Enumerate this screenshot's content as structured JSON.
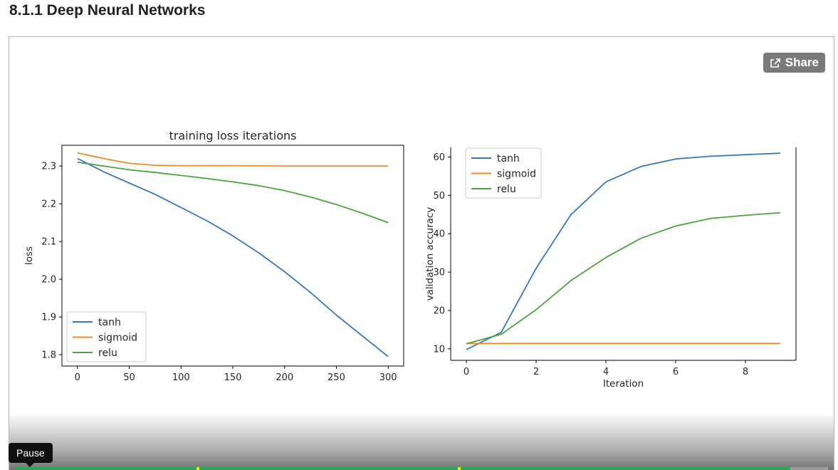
{
  "page": {
    "section_title": "8.1.1 Deep Neural Networks"
  },
  "player": {
    "share_label": "Share",
    "share_icon": "share-icon",
    "tooltip": "Pause"
  },
  "colors": {
    "tanh": "#3a78b5",
    "sigmoid": "#f08a24",
    "relu": "#4ea23f",
    "progress": "#2fa35e"
  },
  "chart_data": [
    {
      "type": "line",
      "title": "training loss iterations",
      "xlabel": "",
      "ylabel": "loss",
      "xlim": [
        -15,
        315
      ],
      "ylim": [
        1.77,
        2.355
      ],
      "xticks": [
        0,
        50,
        100,
        150,
        200,
        250,
        300
      ],
      "yticks": [
        1.8,
        1.9,
        2.0,
        2.1,
        2.2,
        2.3
      ],
      "ytick_labels": [
        "1.8",
        "1.9",
        "2.0",
        "2.1",
        "2.2",
        "2.3"
      ],
      "legend": "lower-left",
      "grid": false,
      "series": [
        {
          "name": "tanh",
          "x": [
            0,
            25,
            50,
            75,
            100,
            125,
            150,
            175,
            200,
            225,
            250,
            275,
            300
          ],
          "y": [
            2.32,
            2.285,
            2.255,
            2.225,
            2.19,
            2.155,
            2.115,
            2.07,
            2.02,
            1.965,
            1.905,
            1.85,
            1.795
          ]
        },
        {
          "name": "sigmoid",
          "x": [
            0,
            25,
            50,
            75,
            100,
            150,
            200,
            250,
            300
          ],
          "y": [
            2.335,
            2.32,
            2.307,
            2.302,
            2.301,
            2.301,
            2.3,
            2.3,
            2.3
          ]
        },
        {
          "name": "relu",
          "x": [
            0,
            25,
            50,
            75,
            100,
            125,
            150,
            175,
            200,
            225,
            250,
            275,
            300
          ],
          "y": [
            2.31,
            2.3,
            2.29,
            2.283,
            2.275,
            2.267,
            2.258,
            2.248,
            2.235,
            2.218,
            2.198,
            2.175,
            2.15
          ]
        }
      ]
    },
    {
      "type": "line",
      "title": "",
      "xlabel": "Iteration",
      "ylabel": "validation accuracy",
      "xlim": [
        -0.45,
        9.45
      ],
      "ylim": [
        7,
        62.5
      ],
      "xticks": [
        0,
        2,
        4,
        6,
        8
      ],
      "yticks": [
        10,
        20,
        30,
        40,
        50,
        60
      ],
      "legend": "upper-left",
      "grid": false,
      "series": [
        {
          "name": "tanh",
          "x": [
            0,
            1,
            2,
            3,
            4,
            5,
            6,
            7,
            8,
            9
          ],
          "y": [
            9.8,
            14.3,
            31,
            45,
            53.5,
            57.5,
            59.5,
            60.2,
            60.6,
            61
          ]
        },
        {
          "name": "sigmoid",
          "x": [
            0,
            1,
            2,
            3,
            4,
            5,
            6,
            7,
            8,
            9
          ],
          "y": [
            11.4,
            11.4,
            11.4,
            11.4,
            11.4,
            11.4,
            11.4,
            11.4,
            11.4,
            11.4
          ]
        },
        {
          "name": "relu",
          "x": [
            0,
            1,
            2,
            3,
            4,
            5,
            6,
            7,
            8,
            9
          ],
          "y": [
            11.3,
            13.8,
            20.2,
            27.8,
            33.8,
            38.8,
            42,
            44,
            44.8,
            45.5
          ]
        }
      ]
    }
  ]
}
